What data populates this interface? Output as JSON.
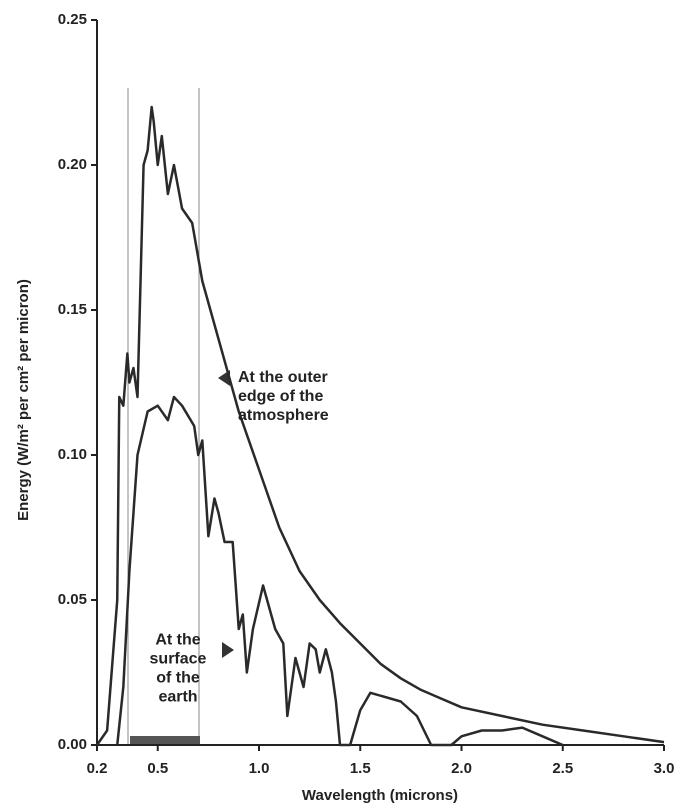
{
  "chart_data": {
    "type": "line",
    "xlabel": "Wavelength (microns)",
    "ylabel": "Energy (W/m² per cm² per micron)",
    "xlim": [
      0.2,
      3.0
    ],
    "ylim": [
      0,
      0.25
    ],
    "xticks": [
      0.2,
      0.5,
      {
        "value": 1,
        "label": "1.0"
      },
      1.5,
      {
        "value": 2,
        "label": "2.0"
      },
      2.5,
      {
        "value": 3,
        "label": "3.0"
      }
    ],
    "yticks": [
      {
        "value": 0,
        "label": "0.00"
      },
      0.05,
      {
        "value": 0.1,
        "label": "0.10"
      },
      0.15,
      {
        "value": 0.2,
        "label": "0.20"
      },
      0.25
    ],
    "series": [
      {
        "color": "#2a2a2a",
        "x": [
          0.2,
          0.25,
          0.3,
          0.31,
          0.33,
          0.35,
          0.36,
          0.38,
          0.4,
          0.43,
          0.45,
          0.47,
          0.48,
          0.5,
          0.52,
          0.55,
          0.58,
          0.62,
          0.67,
          0.72,
          0.8,
          0.9,
          1.0,
          1.1,
          1.2,
          1.3,
          1.4,
          1.5,
          1.6,
          1.7,
          1.8,
          1.9,
          2.0,
          2.2,
          2.4,
          2.6,
          2.8,
          3.0
        ],
        "values": [
          0.0,
          0.005,
          0.05,
          0.12,
          0.117,
          0.135,
          0.125,
          0.13,
          0.12,
          0.2,
          0.205,
          0.22,
          0.215,
          0.2,
          0.21,
          0.19,
          0.2,
          0.185,
          0.18,
          0.16,
          0.14,
          0.115,
          0.095,
          0.075,
          0.06,
          0.05,
          0.042,
          0.035,
          0.028,
          0.023,
          0.019,
          0.016,
          0.013,
          0.01,
          0.007,
          0.005,
          0.003,
          0.001
        ]
      },
      {
        "color": "#2a2a2a",
        "x": [
          0.3,
          0.33,
          0.36,
          0.4,
          0.45,
          0.5,
          0.55,
          0.58,
          0.62,
          0.68,
          0.7,
          0.72,
          0.75,
          0.78,
          0.8,
          0.83,
          0.87,
          0.9,
          0.92,
          0.94,
          0.97,
          1.02,
          1.08,
          1.12,
          1.14,
          1.18,
          1.22,
          1.25,
          1.28,
          1.3,
          1.33,
          1.36,
          1.38,
          1.4,
          1.45,
          1.5,
          1.55,
          1.7,
          1.78,
          1.85,
          1.95,
          2.0,
          2.1,
          2.2,
          2.3,
          2.4,
          2.5
        ],
        "values": [
          0.0,
          0.02,
          0.06,
          0.1,
          0.115,
          0.117,
          0.112,
          0.12,
          0.117,
          0.11,
          0.1,
          0.105,
          0.072,
          0.085,
          0.08,
          0.07,
          0.07,
          0.04,
          0.045,
          0.025,
          0.04,
          0.055,
          0.04,
          0.035,
          0.01,
          0.03,
          0.02,
          0.035,
          0.033,
          0.025,
          0.033,
          0.025,
          0.015,
          0.0,
          0.0,
          0.012,
          0.018,
          0.015,
          0.01,
          0.0,
          0.0,
          0.003,
          0.005,
          0.005,
          0.006,
          0.003,
          0.0
        ]
      }
    ],
    "annotations": [
      {
        "lines": [
          "At the outer",
          "edge of the",
          "atmosphere"
        ]
      },
      {
        "lines": [
          "At the",
          "surface",
          "of the",
          "earth"
        ]
      }
    ]
  }
}
